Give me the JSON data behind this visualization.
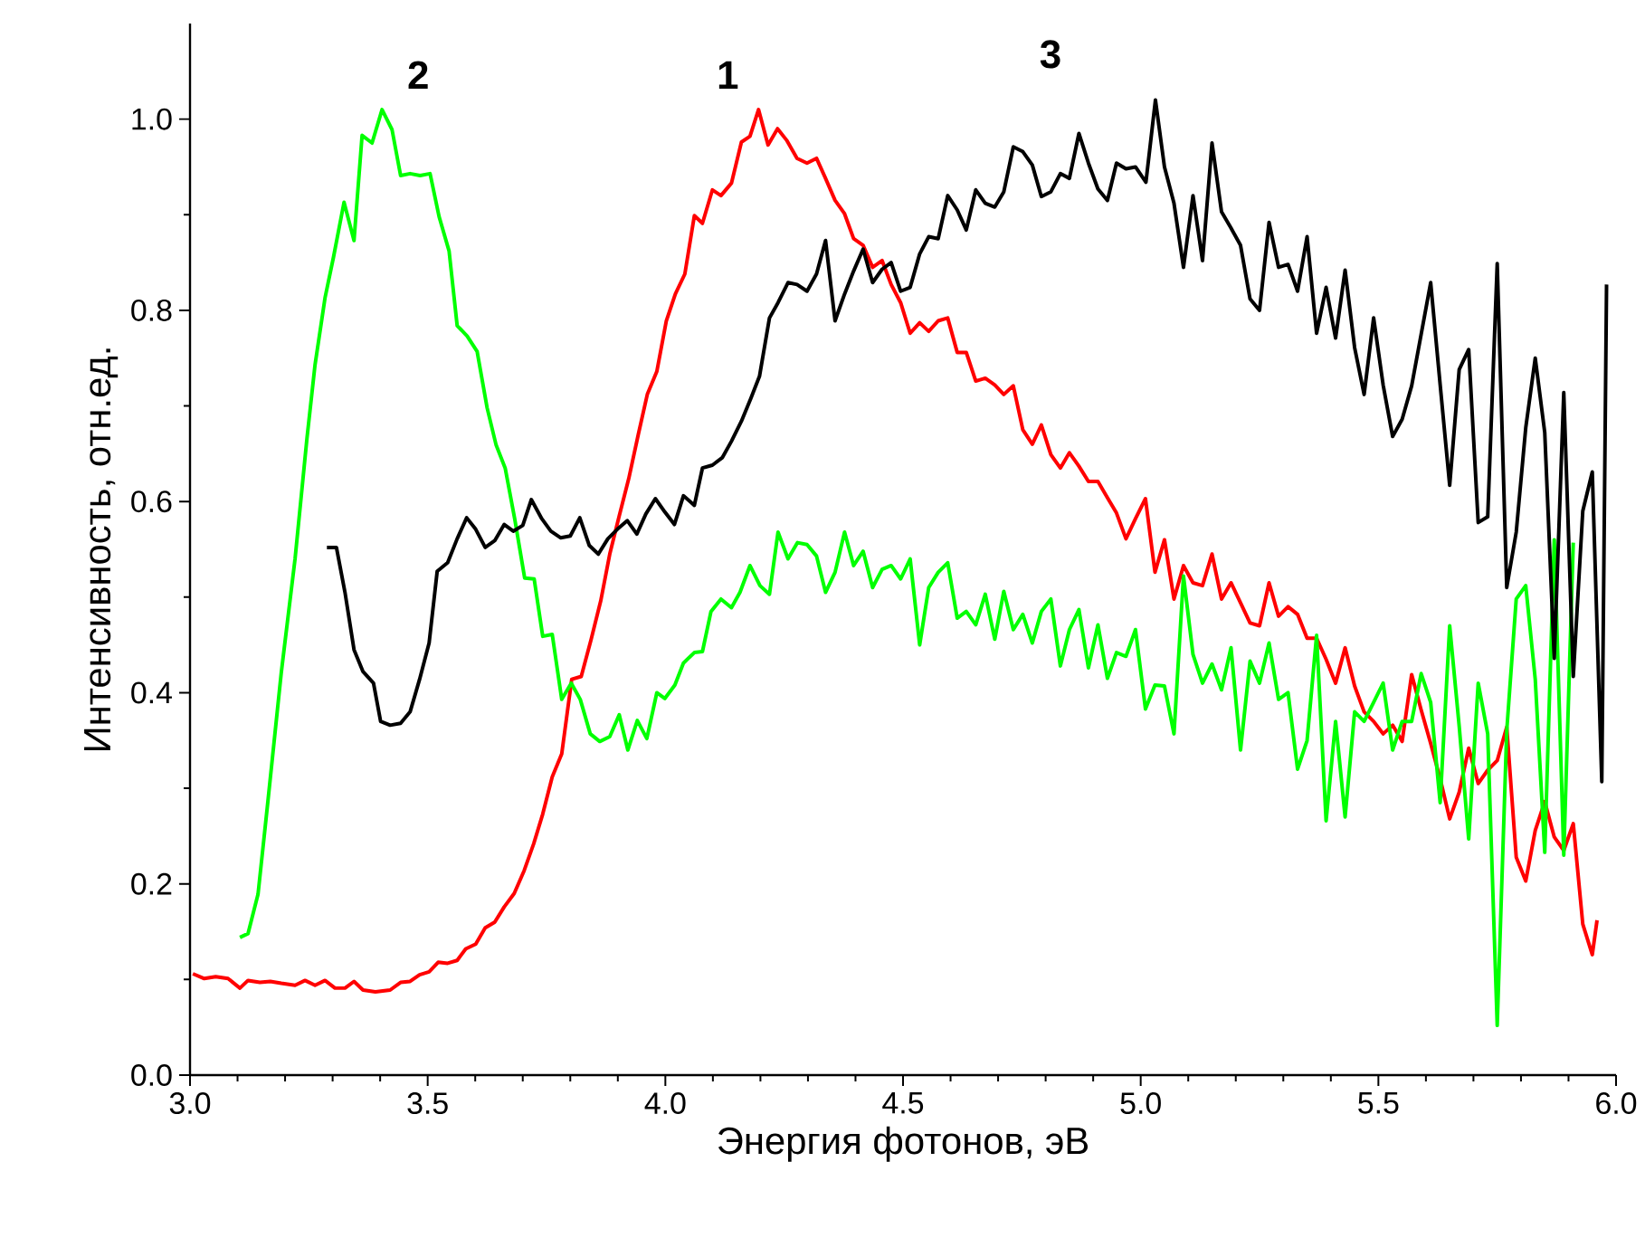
{
  "chart_data": {
    "type": "line",
    "xlabel": "Энергия фотонов, эВ",
    "ylabel": "Интенсивность, отн.ед.",
    "xlim": [
      3.0,
      6.0
    ],
    "ylim": [
      0.0,
      1.1
    ],
    "xticks": [
      {
        "value": 3.0,
        "label": "3.0"
      },
      {
        "value": 3.5,
        "label": "3.5"
      },
      {
        "value": 4.0,
        "label": "4.0"
      },
      {
        "value": 4.5,
        "label": "4.5"
      },
      {
        "value": 5.0,
        "label": "5.0"
      },
      {
        "value": 5.5,
        "label": "5.5"
      },
      {
        "value": 6.0,
        "label": "6.0"
      }
    ],
    "yticks": [
      {
        "value": 0.0,
        "label": "0.0"
      },
      {
        "value": 0.2,
        "label": "0.2"
      },
      {
        "value": 0.4,
        "label": "0.4"
      },
      {
        "value": 0.6,
        "label": "0.6"
      },
      {
        "value": 0.8,
        "label": "0.8"
      },
      {
        "value": 1.0,
        "label": "1.0"
      }
    ],
    "grid": false,
    "legend": false,
    "marker": "none",
    "line_style": "solid",
    "series": [
      {
        "name": "1",
        "color": "#ff0000",
        "x": [
          3.006,
          3.03,
          3.054,
          3.08,
          3.105,
          3.122,
          3.147,
          3.169,
          3.192,
          3.221,
          3.242,
          3.263,
          3.284,
          3.305,
          3.326,
          3.345,
          3.364,
          3.39,
          3.421,
          3.443,
          3.463,
          3.483,
          3.503,
          3.522,
          3.542,
          3.562,
          3.58,
          3.601,
          3.621,
          3.641,
          3.661,
          3.682,
          3.703,
          3.723,
          3.742,
          3.762,
          3.782,
          3.803,
          3.823,
          3.844,
          3.864,
          3.883,
          3.903,
          3.923,
          3.943,
          3.962,
          3.982,
          4.002,
          4.021,
          4.041,
          4.061,
          4.078,
          4.099,
          4.117,
          4.139,
          4.16,
          4.178,
          4.196,
          4.216,
          4.236,
          4.255,
          4.277,
          4.298,
          4.318,
          4.337,
          4.357,
          4.377,
          4.396,
          4.416,
          4.436,
          4.456,
          4.475,
          4.495,
          4.515,
          4.535,
          4.554,
          4.574,
          4.594,
          4.614,
          4.633,
          4.653,
          4.673,
          4.693,
          4.712,
          4.732,
          4.752,
          4.772,
          4.791,
          4.811,
          4.831,
          4.85,
          4.87,
          4.89,
          4.91,
          4.93,
          4.949,
          4.969,
          4.989,
          5.01,
          5.03,
          5.05,
          5.07,
          5.09,
          5.11,
          5.13,
          5.15,
          5.17,
          5.19,
          5.21,
          5.23,
          5.25,
          5.27,
          5.29,
          5.31,
          5.33,
          5.35,
          5.37,
          5.39,
          5.41,
          5.43,
          5.45,
          5.47,
          5.49,
          5.51,
          5.53,
          5.55,
          5.57,
          5.59,
          5.61,
          5.63,
          5.65,
          5.67,
          5.69,
          5.71,
          5.73,
          5.75,
          5.77,
          5.79,
          5.81,
          5.83,
          5.85,
          5.87,
          5.89,
          5.91,
          5.93,
          5.95,
          5.96
        ],
        "values": [
          0.106,
          0.101,
          0.103,
          0.101,
          0.091,
          0.099,
          0.097,
          0.098,
          0.096,
          0.094,
          0.099,
          0.094,
          0.099,
          0.091,
          0.091,
          0.098,
          0.089,
          0.087,
          0.089,
          0.097,
          0.098,
          0.105,
          0.108,
          0.118,
          0.117,
          0.12,
          0.132,
          0.137,
          0.154,
          0.16,
          0.176,
          0.19,
          0.214,
          0.242,
          0.273,
          0.312,
          0.336,
          0.414,
          0.417,
          0.456,
          0.496,
          0.545,
          0.585,
          0.624,
          0.67,
          0.712,
          0.736,
          0.789,
          0.817,
          0.838,
          0.899,
          0.891,
          0.926,
          0.92,
          0.933,
          0.976,
          0.982,
          1.01,
          0.973,
          0.99,
          0.978,
          0.959,
          0.954,
          0.959,
          0.938,
          0.915,
          0.901,
          0.875,
          0.868,
          0.845,
          0.852,
          0.827,
          0.808,
          0.776,
          0.787,
          0.778,
          0.789,
          0.792,
          0.756,
          0.756,
          0.726,
          0.729,
          0.722,
          0.712,
          0.721,
          0.675,
          0.66,
          0.68,
          0.649,
          0.635,
          0.651,
          0.637,
          0.621,
          0.621,
          0.604,
          0.588,
          0.561,
          0.582,
          0.603,
          0.526,
          0.56,
          0.498,
          0.533,
          0.515,
          0.512,
          0.545,
          0.498,
          0.515,
          0.494,
          0.473,
          0.47,
          0.515,
          0.48,
          0.49,
          0.482,
          0.457,
          0.457,
          0.435,
          0.41,
          0.447,
          0.407,
          0.38,
          0.37,
          0.357,
          0.366,
          0.349,
          0.419,
          0.382,
          0.347,
          0.31,
          0.268,
          0.296,
          0.342,
          0.305,
          0.319,
          0.329,
          0.364,
          0.228,
          0.203,
          0.256,
          0.286,
          0.249,
          0.235,
          0.263,
          0.158,
          0.126,
          0.162
        ]
      },
      {
        "name": "2",
        "color": "#00ff00",
        "x": [
          3.105,
          3.122,
          3.143,
          3.164,
          3.192,
          3.221,
          3.246,
          3.263,
          3.284,
          3.302,
          3.324,
          3.345,
          3.362,
          3.383,
          3.404,
          3.425,
          3.443,
          3.463,
          3.484,
          3.505,
          3.524,
          3.545,
          3.562,
          3.583,
          3.604,
          3.625,
          3.644,
          3.663,
          3.683,
          3.704,
          3.724,
          3.742,
          3.762,
          3.782,
          3.802,
          3.821,
          3.842,
          3.862,
          3.883,
          3.903,
          3.921,
          3.941,
          3.961,
          3.982,
          3.999,
          4.02,
          4.038,
          4.061,
          4.078,
          4.096,
          4.117,
          4.139,
          4.157,
          4.178,
          4.199,
          4.219,
          4.237,
          4.258,
          4.278,
          4.298,
          4.318,
          4.337,
          4.357,
          4.377,
          4.396,
          4.416,
          4.436,
          4.456,
          4.475,
          4.495,
          4.515,
          4.535,
          4.554,
          4.574,
          4.594,
          4.614,
          4.633,
          4.653,
          4.673,
          4.693,
          4.712,
          4.732,
          4.752,
          4.772,
          4.791,
          4.811,
          4.831,
          4.85,
          4.87,
          4.89,
          4.91,
          4.93,
          4.949,
          4.969,
          4.989,
          5.01,
          5.03,
          5.05,
          5.07,
          5.09,
          5.11,
          5.13,
          5.15,
          5.17,
          5.19,
          5.21,
          5.23,
          5.25,
          5.27,
          5.29,
          5.31,
          5.33,
          5.35,
          5.37,
          5.39,
          5.41,
          5.43,
          5.45,
          5.47,
          5.49,
          5.51,
          5.53,
          5.55,
          5.57,
          5.59,
          5.61,
          5.63,
          5.65,
          5.67,
          5.69,
          5.71,
          5.73,
          5.75,
          5.77,
          5.79,
          5.81,
          5.83,
          5.85,
          5.87,
          5.89,
          5.91
        ],
        "values": [
          0.144,
          0.148,
          0.189,
          0.287,
          0.421,
          0.54,
          0.666,
          0.743,
          0.813,
          0.856,
          0.913,
          0.873,
          0.983,
          0.975,
          1.01,
          0.989,
          0.941,
          0.943,
          0.941,
          0.943,
          0.898,
          0.862,
          0.784,
          0.773,
          0.757,
          0.698,
          0.659,
          0.635,
          0.582,
          0.52,
          0.519,
          0.459,
          0.461,
          0.393,
          0.41,
          0.393,
          0.357,
          0.349,
          0.354,
          0.377,
          0.34,
          0.371,
          0.352,
          0.4,
          0.394,
          0.408,
          0.431,
          0.442,
          0.443,
          0.485,
          0.498,
          0.489,
          0.505,
          0.533,
          0.512,
          0.503,
          0.568,
          0.54,
          0.557,
          0.555,
          0.543,
          0.505,
          0.526,
          0.568,
          0.533,
          0.548,
          0.51,
          0.529,
          0.533,
          0.519,
          0.54,
          0.45,
          0.51,
          0.526,
          0.536,
          0.478,
          0.485,
          0.471,
          0.503,
          0.456,
          0.506,
          0.466,
          0.482,
          0.452,
          0.485,
          0.498,
          0.428,
          0.466,
          0.487,
          0.426,
          0.471,
          0.415,
          0.442,
          0.438,
          0.466,
          0.383,
          0.408,
          0.407,
          0.357,
          0.522,
          0.44,
          0.41,
          0.43,
          0.403,
          0.447,
          0.34,
          0.433,
          0.41,
          0.452,
          0.393,
          0.4,
          0.32,
          0.35,
          0.46,
          0.266,
          0.37,
          0.27,
          0.38,
          0.37,
          0.39,
          0.41,
          0.34,
          0.37,
          0.37,
          0.42,
          0.39,
          0.285,
          0.47,
          0.365,
          0.247,
          0.41,
          0.357,
          0.052,
          0.36,
          0.498,
          0.512,
          0.414,
          0.233,
          0.56,
          0.23,
          0.557
        ]
      },
      {
        "name": "3",
        "color": "#000000",
        "x": [
          3.288,
          3.308,
          3.326,
          3.345,
          3.364,
          3.386,
          3.401,
          3.421,
          3.443,
          3.463,
          3.483,
          3.503,
          3.52,
          3.542,
          3.562,
          3.582,
          3.601,
          3.621,
          3.641,
          3.661,
          3.68,
          3.7,
          3.718,
          3.74,
          3.759,
          3.78,
          3.8,
          3.82,
          3.84,
          3.859,
          3.879,
          3.899,
          3.92,
          3.94,
          3.959,
          3.979,
          3.999,
          4.019,
          4.038,
          4.061,
          4.078,
          4.099,
          4.12,
          4.139,
          4.16,
          4.18,
          4.198,
          4.219,
          4.237,
          4.258,
          4.277,
          4.298,
          4.318,
          4.337,
          4.357,
          4.377,
          4.396,
          4.416,
          4.436,
          4.456,
          4.475,
          4.495,
          4.515,
          4.535,
          4.554,
          4.574,
          4.594,
          4.614,
          4.633,
          4.653,
          4.673,
          4.693,
          4.712,
          4.732,
          4.752,
          4.772,
          4.791,
          4.811,
          4.831,
          4.85,
          4.87,
          4.89,
          4.91,
          4.93,
          4.949,
          4.969,
          4.989,
          5.011,
          5.031,
          5.05,
          5.07,
          5.09,
          5.11,
          5.13,
          5.15,
          5.17,
          5.19,
          5.21,
          5.23,
          5.25,
          5.27,
          5.29,
          5.31,
          5.33,
          5.35,
          5.37,
          5.39,
          5.41,
          5.43,
          5.45,
          5.47,
          5.49,
          5.51,
          5.53,
          5.55,
          5.57,
          5.59,
          5.61,
          5.63,
          5.65,
          5.67,
          5.69,
          5.71,
          5.73,
          5.75,
          5.77,
          5.79,
          5.81,
          5.83,
          5.85,
          5.87,
          5.89,
          5.91,
          5.93,
          5.95,
          5.97,
          5.98
        ],
        "values": [
          0.552,
          0.552,
          0.505,
          0.445,
          0.422,
          0.41,
          0.37,
          0.366,
          0.368,
          0.38,
          0.414,
          0.452,
          0.527,
          0.536,
          0.561,
          0.583,
          0.571,
          0.552,
          0.559,
          0.576,
          0.569,
          0.575,
          0.602,
          0.582,
          0.569,
          0.562,
          0.564,
          0.583,
          0.554,
          0.545,
          0.561,
          0.571,
          0.58,
          0.566,
          0.587,
          0.603,
          0.589,
          0.576,
          0.606,
          0.596,
          0.635,
          0.638,
          0.646,
          0.663,
          0.684,
          0.708,
          0.731,
          0.792,
          0.808,
          0.829,
          0.827,
          0.82,
          0.838,
          0.873,
          0.789,
          0.817,
          0.841,
          0.864,
          0.829,
          0.843,
          0.85,
          0.82,
          0.824,
          0.859,
          0.877,
          0.875,
          0.92,
          0.905,
          0.884,
          0.926,
          0.912,
          0.908,
          0.924,
          0.971,
          0.966,
          0.952,
          0.919,
          0.924,
          0.943,
          0.938,
          0.985,
          0.954,
          0.927,
          0.915,
          0.954,
          0.948,
          0.95,
          0.934,
          1.02,
          0.95,
          0.912,
          0.845,
          0.92,
          0.852,
          0.975,
          0.903,
          0.886,
          0.868,
          0.812,
          0.8,
          0.892,
          0.845,
          0.848,
          0.82,
          0.877,
          0.776,
          0.824,
          0.771,
          0.842,
          0.761,
          0.712,
          0.792,
          0.722,
          0.668,
          0.686,
          0.721,
          0.775,
          0.829,
          0.722,
          0.617,
          0.738,
          0.759,
          0.578,
          0.584,
          0.849,
          0.51,
          0.568,
          0.677,
          0.75,
          0.672,
          0.436,
          0.714,
          0.417,
          0.59,
          0.631,
          0.307,
          0.827
        ]
      }
    ]
  }
}
